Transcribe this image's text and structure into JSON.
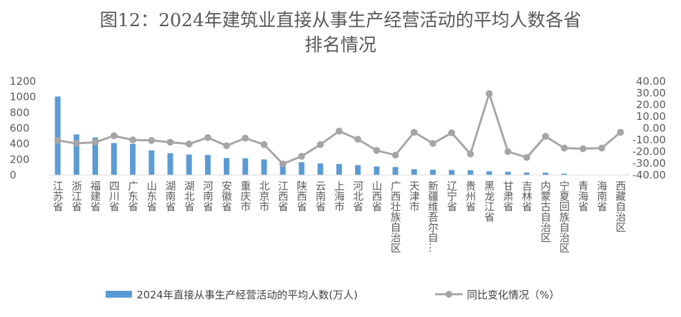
{
  "chart_data": {
    "type": "bar",
    "title_line1": "图12：2024年建筑业直接从事生产经营活动的平均人数各省",
    "title_line2": "排名情况",
    "categories": [
      "江苏省",
      "浙江省",
      "福建省",
      "四川省",
      "广东省",
      "山东省",
      "湖南省",
      "湖北省",
      "河南省",
      "安徽省",
      "重庆市",
      "北京市",
      "江西省",
      "陕西省",
      "云南省",
      "上海市",
      "河北省",
      "山西省",
      "广西壮族自治区",
      "天津市",
      "新疆维吾尔自…",
      "辽宁省",
      "贵州省",
      "黑龙江省",
      "甘肃省",
      "吉林省",
      "内蒙古自治区",
      "宁夏回族自治区",
      "青海省",
      "海南省",
      "西藏自治区"
    ],
    "series": [
      {
        "name": "2024年直接从事生产经营活动的平均人数(万人)",
        "type": "bar",
        "axis": "left",
        "color": "#5b9bd5",
        "values": [
          1005,
          520,
          480,
          410,
          400,
          315,
          280,
          262,
          258,
          218,
          215,
          200,
          135,
          165,
          148,
          142,
          128,
          110,
          103,
          75,
          68,
          65,
          62,
          48,
          42,
          32,
          30,
          18,
          5,
          4,
          2
        ]
      },
      {
        "name": "同比变化情况（%）",
        "type": "line",
        "axis": "right",
        "color": "#a5a5a5",
        "values": [
          -10.5,
          -13,
          -12,
          -6.5,
          -10,
          -10.5,
          -12,
          -13.5,
          -8,
          -15,
          -8.5,
          -14,
          -30.5,
          -24,
          -14,
          -2.5,
          -9.5,
          -19,
          -23,
          -3.5,
          -13,
          -4,
          -22,
          29.5,
          -20,
          -25,
          -7,
          -17,
          -17.5,
          -17,
          -3.5
        ]
      }
    ],
    "y_left": {
      "min": 0,
      "max": 1200,
      "ticks": [
        "0",
        "200",
        "400",
        "600",
        "800",
        "1000",
        "1200"
      ]
    },
    "y_right": {
      "min": -40,
      "max": 40,
      "ticks": [
        "-40.00",
        "-30.00",
        "-20.00",
        "-10.00",
        "0.00",
        "10.00",
        "20.00",
        "30.00",
        "40.00"
      ]
    },
    "legend": {
      "position": "bottom",
      "bar_label": "2024年直接从事生产经营活动的平均人数(万人)",
      "line_label": "同比变化情况（%）"
    }
  }
}
